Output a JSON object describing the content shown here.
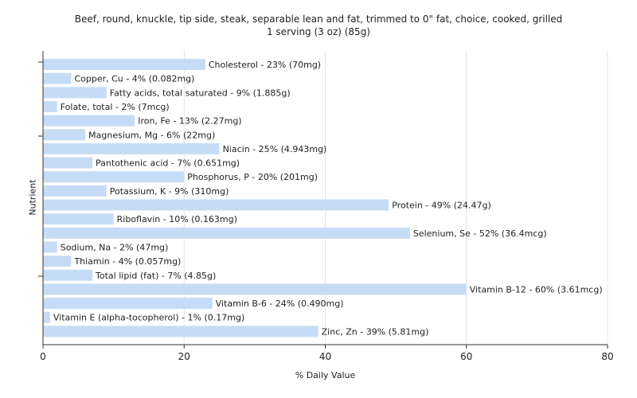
{
  "chart_data": {
    "type": "bar",
    "orientation": "horizontal",
    "title": "Beef, round, knuckle, tip side, steak, separable lean and fat, trimmed to 0\" fat, choice, cooked, grilled",
    "subtitle": "1 serving (3 oz) (85g)",
    "xlabel": "% Daily Value",
    "ylabel": "Nutrient",
    "xlim": [
      0,
      80
    ],
    "xticks": [
      0,
      20,
      40,
      60,
      80
    ],
    "grid": true,
    "bar_color": "#c6dcf6",
    "categories": [
      "Cholesterol",
      "Copper, Cu",
      "Fatty acids, total saturated",
      "Folate, total",
      "Iron, Fe",
      "Magnesium, Mg",
      "Niacin",
      "Pantothenic acid",
      "Phosphorus, P",
      "Potassium, K",
      "Protein",
      "Riboflavin",
      "Selenium, Se",
      "Sodium, Na",
      "Thiamin",
      "Total lipid (fat)",
      "Vitamin B-12",
      "Vitamin B-6",
      "Vitamin E (alpha-tocopherol)",
      "Zinc, Zn"
    ],
    "values": [
      23,
      4,
      9,
      2,
      13,
      6,
      25,
      7,
      20,
      9,
      49,
      10,
      52,
      2,
      4,
      7,
      60,
      24,
      1,
      39
    ],
    "labels": [
      "Cholesterol - 23% (70mg)",
      "Copper, Cu - 4% (0.082mg)",
      "Fatty acids, total saturated - 9% (1.885g)",
      "Folate, total - 2% (7mcg)",
      "Iron, Fe - 13% (2.27mg)",
      "Magnesium, Mg - 6% (22mg)",
      "Niacin - 25% (4.943mg)",
      "Pantothenic acid - 7% (0.651mg)",
      "Phosphorus, P - 20% (201mg)",
      "Potassium, K - 9% (310mg)",
      "Protein - 49% (24.47g)",
      "Riboflavin - 10% (0.163mg)",
      "Selenium, Se - 52% (36.4mcg)",
      "Sodium, Na - 2% (47mg)",
      "Thiamin - 4% (0.057mg)",
      "Total lipid (fat) - 7% (4.85g)",
      "Vitamin B-12 - 60% (3.61mcg)",
      "Vitamin B-6 - 24% (0.490mg)",
      "Vitamin E (alpha-tocopherol) - 1% (0.17mg)",
      "Zinc, Zn - 39% (5.81mg)"
    ]
  }
}
